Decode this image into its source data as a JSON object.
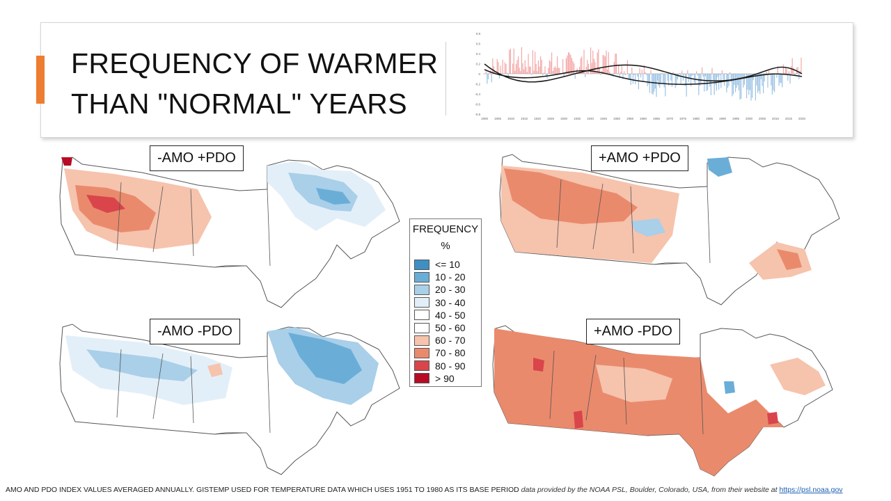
{
  "slide": {
    "title_line1": "FREQUENCY OF WARMER",
    "title_line2": "THAN \"NORMAL\" YEARS"
  },
  "index_chart": {
    "x_labels": [
      "1900",
      "1905",
      "1910",
      "1915",
      "1920",
      "1925",
      "1930",
      "1935",
      "1940",
      "1945",
      "1950",
      "1955",
      "1960",
      "1965",
      "1970",
      "1975",
      "1980",
      "1985",
      "1990",
      "1995",
      "2000",
      "2005",
      "2010",
      "2015",
      "2020"
    ],
    "y_labels": [
      "0.8",
      "0.6",
      "0.4",
      "0.2",
      "0",
      "-0.2",
      "-0.4",
      "-0.6",
      "-0.8"
    ],
    "positive_color": "#f4a6a6",
    "negative_color": "#9cc3e4",
    "trend_color": "#1a1a1a"
  },
  "maps": [
    {
      "label": "-AMO +PDO"
    },
    {
      "label": "+AMO +PDO"
    },
    {
      "label": "-AMO -PDO"
    },
    {
      "label": "+AMO -PDO"
    }
  ],
  "legend": {
    "title": "FREQUENCY",
    "unit": "%",
    "items": [
      {
        "label": "<= 10",
        "color": "#3f8fc4"
      },
      {
        "label": "10 - 20",
        "color": "#6aaed8"
      },
      {
        "label": "20 - 30",
        "color": "#a9cfe9"
      },
      {
        "label": "30 - 40",
        "color": "#e3eff8"
      },
      {
        "label": "40 - 50",
        "color": "#ffffff"
      },
      {
        "label": "50 - 60",
        "color": "#ffffff"
      },
      {
        "label": "60 - 70",
        "color": "#f6c3ad"
      },
      {
        "label": "70 - 80",
        "color": "#ea8a6c"
      },
      {
        "label": "80 - 90",
        "color": "#d9454b"
      },
      {
        "label": "> 90",
        "color": "#b80b24"
      }
    ]
  },
  "footer": {
    "note": "AMO AND PDO INDEX VALUES AVERAGED ANNUALLY. GISTEMP USED FOR TEMPERATURE DATA WHICH USES 1951 TO 1980 AS ITS BASE PERIOD",
    "credit": "data provided by the NOAA PSL, Boulder, Colorado, USA, from their website at",
    "link": "https://psl.noaa.gov"
  }
}
